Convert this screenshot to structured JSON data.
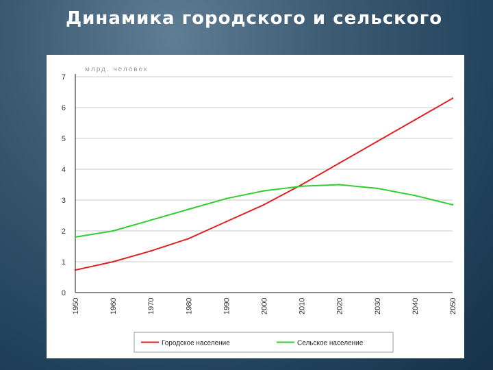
{
  "slide": {
    "title": "Динамика городского и сельского"
  },
  "chart_data": {
    "type": "line",
    "title": "",
    "xlabel": "",
    "ylabel": "",
    "caption_faded": "млрд. человек",
    "x": [
      1950,
      1960,
      1970,
      1980,
      1990,
      2000,
      2010,
      2020,
      2030,
      2040,
      2050
    ],
    "x_tick_labels": [
      "1950",
      "1960",
      "1970",
      "1980",
      "1990",
      "2000",
      "2010",
      "2020",
      "2030",
      "2040",
      "2050"
    ],
    "ylim": [
      0,
      7
    ],
    "y_ticks": [
      0,
      1,
      2,
      3,
      4,
      5,
      6,
      7
    ],
    "y_tick_labels": [
      "0",
      "1",
      "2",
      "3",
      "4",
      "5",
      "6",
      "7"
    ],
    "grid": true,
    "legend_position": "bottom",
    "series": [
      {
        "name": "Городское население",
        "color": "#dd2222",
        "values": [
          0.73,
          1.0,
          1.35,
          1.75,
          2.3,
          2.85,
          3.5,
          4.2,
          4.9,
          5.6,
          6.3
        ]
      },
      {
        "name": "Сельское население",
        "color": "#33cc33",
        "values": [
          1.8,
          2.0,
          2.35,
          2.7,
          3.05,
          3.3,
          3.45,
          3.5,
          3.38,
          3.15,
          2.85
        ]
      }
    ]
  }
}
